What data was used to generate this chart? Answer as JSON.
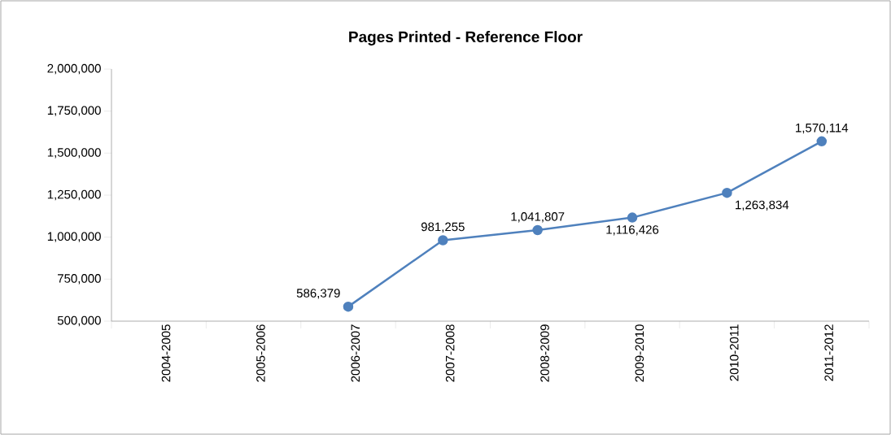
{
  "chart_data": {
    "type": "line",
    "title": "Pages Printed - Reference Floor",
    "categories": [
      "2004-2005",
      "2005-2006",
      "2006-2007",
      "2007-2008",
      "2008-2009",
      "2009-2010",
      "2010-2011",
      "2011-2012"
    ],
    "values": [
      null,
      null,
      586379,
      981255,
      1041807,
      1116426,
      1263834,
      1570114
    ],
    "value_labels": [
      null,
      null,
      "586,379",
      "981,255",
      "1,041,807",
      "1,116,426",
      "1,263,834",
      "1,570,114"
    ],
    "color": "#4f81bd",
    "marker": "circle",
    "line_style": "solid",
    "ylim": [
      500000,
      2000000
    ],
    "yticks": [
      {
        "value": 500000,
        "label": "500,000"
      },
      {
        "value": 750000,
        "label": "750,000"
      },
      {
        "value": 1000000,
        "label": "1,000,000"
      },
      {
        "value": 1250000,
        "label": "1,250,000"
      },
      {
        "value": 1500000,
        "label": "1,500,000"
      },
      {
        "value": 1750000,
        "label": "1,750,000"
      },
      {
        "value": 2000000,
        "label": "2,000,000"
      }
    ]
  }
}
